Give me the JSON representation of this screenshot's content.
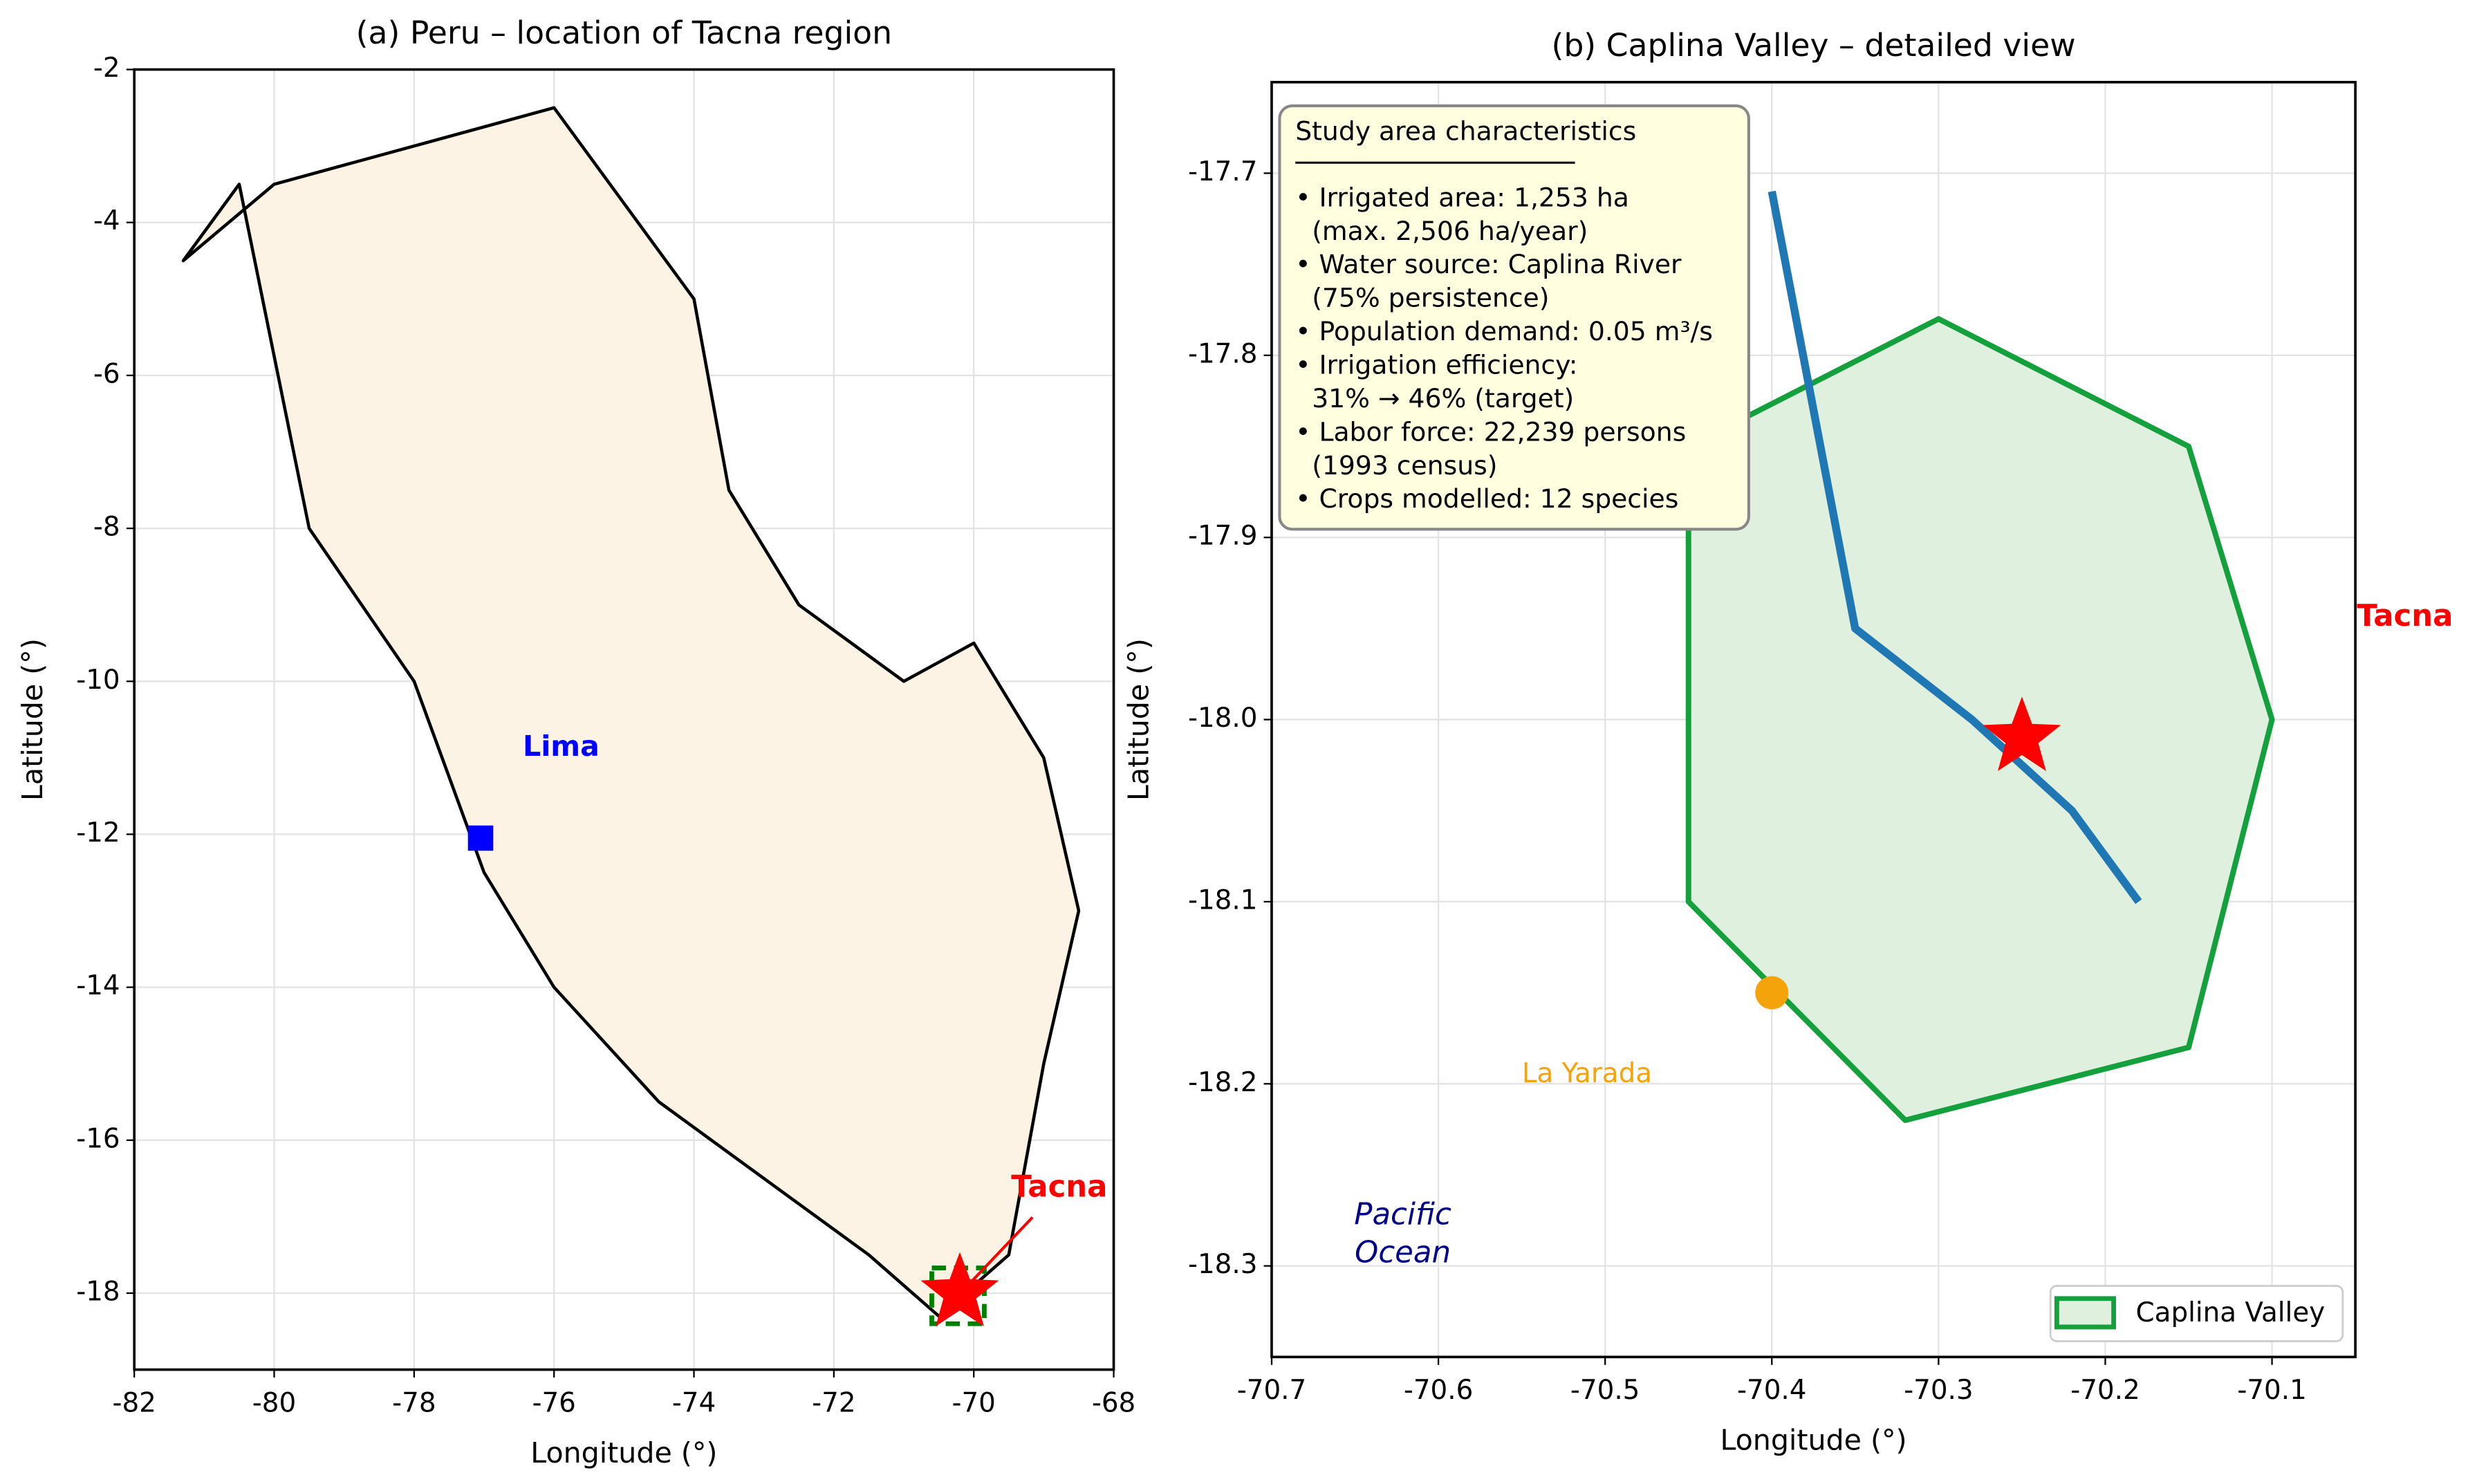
{
  "chart_data": [
    {
      "type": "map",
      "title": "(a) Peru – location of Tacna region",
      "xlabel": "Longitude (°)",
      "ylabel": "Latitude (°)",
      "xlim": [
        -82,
        -68
      ],
      "ylim": [
        -19,
        -2
      ],
      "xticks": [
        -82,
        -80,
        -78,
        -76,
        -74,
        -72,
        -70,
        -68
      ],
      "yticks": [
        -2,
        -4,
        -6,
        -8,
        -10,
        -12,
        -14,
        -16,
        -18
      ],
      "grid": true,
      "outline": {
        "color": "#000000",
        "fill": "#fdf3e4",
        "x": [
          -81.3,
          -80,
          -76,
          -74,
          -73.5,
          -72.5,
          -71,
          -70,
          -69,
          -68.5,
          -69,
          -69.5,
          -70.5,
          -71.5,
          -74.5,
          -76,
          -77,
          -78,
          -79.5,
          -80.5
        ],
        "y": [
          -4.5,
          -3.5,
          -2.5,
          -5,
          -7.5,
          -9,
          -10,
          -9.5,
          -11,
          -13,
          -15,
          -17.5,
          -18.3,
          -17.5,
          -15.5,
          -14,
          -12.5,
          -10,
          -8,
          -3.5
        ]
      },
      "box": {
        "color": "#008000",
        "x": [
          -70.6,
          -69.85
        ],
        "y": [
          -18.4,
          -17.67
        ]
      },
      "markers": [
        {
          "label": "Lima",
          "shape": "square",
          "color": "#0000ff",
          "x": -77.05,
          "y": -12.05
        },
        {
          "label": "Tacna",
          "shape": "star",
          "color": "#ff0000",
          "x": -70.2,
          "y": -18.0
        }
      ]
    },
    {
      "type": "map",
      "title": "(b) Caplina Valley – detailed view",
      "xlabel": "Longitude (°)",
      "ylabel": "Latitude (°)",
      "xlim": [
        -70.7,
        -70.05
      ],
      "ylim": [
        -18.35,
        -17.65
      ],
      "xticks": [
        -70.7,
        -70.6,
        -70.5,
        -70.4,
        -70.3,
        -70.2,
        -70.1
      ],
      "yticks": [
        -17.7,
        -17.8,
        -17.9,
        {
          "value": -18,
          "label": "-18.0"
        },
        -18.1,
        -18.2,
        -18.3
      ],
      "grid": true,
      "legend": "lower right",
      "series": [
        {
          "name": "Caplina Valley",
          "color": "#14a03c",
          "fill": "#dff0df",
          "x": [
            -70.3,
            -70.15,
            -70.1,
            -70.15,
            -70.32,
            -70.45,
            -70.45
          ],
          "y": [
            -17.78,
            -17.85,
            -18.0,
            -18.18,
            -18.22,
            -18.1,
            -17.85
          ]
        }
      ],
      "river": {
        "color": "#1f77b4",
        "x": [
          -70.4,
          -70.35,
          -70.28,
          -70.22,
          -70.18
        ],
        "y": [
          -17.71,
          -17.95,
          -18.0,
          -18.05,
          -18.1
        ]
      },
      "markers": [
        {
          "label": "La Yarada",
          "shape": "circle",
          "color": "#f5a30a",
          "x": -70.4,
          "y": -18.15
        },
        {
          "label": "Tacna",
          "shape": "star",
          "color": "#ff0000",
          "x": -70.25,
          "y": -18.01
        }
      ],
      "annotation": [
        "Pacific",
        "Ocean"
      ],
      "textbox": {
        "title": "Study area characteristics",
        "lines": [
          "• Irrigated area: 1,253 ha",
          "  (max. 2,506 ha/year)",
          "• Water source: Caplina River",
          "  (75% persistence)",
          "• Population demand: 0.05 m³/s",
          "• Irrigation efficiency:",
          "  31% → 46% (target)",
          "• Labor force: 22,239 persons",
          "  (1993 census)",
          "• Crops modelled: 12 species"
        ]
      }
    }
  ]
}
